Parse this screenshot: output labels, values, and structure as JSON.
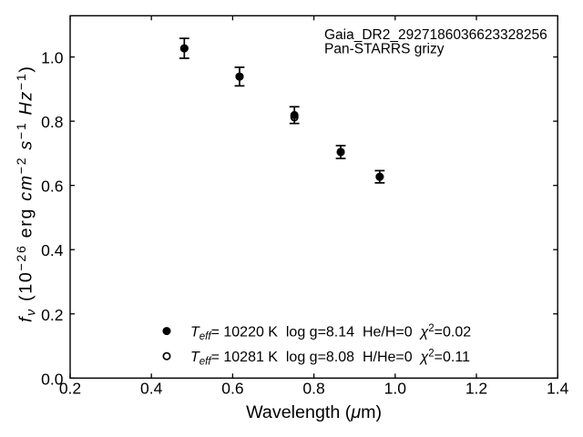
{
  "figure": {
    "kind": "matplotlib-style scatter plot with error bars",
    "background_color": "#ffffff",
    "ink_color": "#000000"
  },
  "chart_data": {
    "type": "scatter",
    "title": "",
    "annotation_lines": [
      "Gaia_DR2_2927186036623328256",
      "Pan-STARRS grizy"
    ],
    "xlabel_parts": [
      {
        "t": "Wavelength (",
        "style": "up",
        "pos": "base"
      },
      {
        "t": "μ",
        "style": "it",
        "pos": "base"
      },
      {
        "t": "m)",
        "style": "up",
        "pos": "base"
      }
    ],
    "xlabel_text": "Wavelength (μm)",
    "ylabel_parts": [
      {
        "t": "f",
        "style": "it",
        "pos": "base"
      },
      {
        "t": "ν",
        "style": "it",
        "pos": "sub"
      },
      {
        "t": " (10",
        "style": "up",
        "pos": "base"
      },
      {
        "t": "−26",
        "style": "up",
        "pos": "sup"
      },
      {
        "t": " erg ",
        "style": "up",
        "pos": "base"
      },
      {
        "t": "cm",
        "style": "it",
        "pos": "base"
      },
      {
        "t": "−2",
        "style": "up",
        "pos": "sup"
      },
      {
        "t": " ",
        "style": "up",
        "pos": "base"
      },
      {
        "t": "s",
        "style": "it",
        "pos": "base"
      },
      {
        "t": "−1",
        "style": "up",
        "pos": "sup"
      },
      {
        "t": " ",
        "style": "up",
        "pos": "base"
      },
      {
        "t": "Hz",
        "style": "it",
        "pos": "base"
      },
      {
        "t": "−1",
        "style": "up",
        "pos": "sup"
      },
      {
        "t": ")",
        "style": "up",
        "pos": "base"
      }
    ],
    "ylabel_text": "fν (10−26 erg cm−2 s−1 Hz−1)",
    "xlim": [
      0.2,
      1.4
    ],
    "ylim": [
      0.0,
      1.1284
    ],
    "xticks": [
      0.2,
      0.4,
      0.6,
      0.8,
      1.0,
      1.2,
      1.4
    ],
    "xtick_labels": [
      "0.2",
      "0.4",
      "0.6",
      "0.8",
      "1.0",
      "1.2",
      "1.4"
    ],
    "yticks": [
      0.0,
      0.2,
      0.4,
      0.6,
      0.8,
      1.0
    ],
    "ytick_labels": [
      "0.0",
      "0.2",
      "0.4",
      "0.6",
      "0.8",
      "1.0"
    ],
    "grid": false,
    "tick_direction": "in",
    "ticks_all_sides": true,
    "series": [
      {
        "name": "open-circle-model",
        "marker": "open-circle",
        "x": [
          0.481,
          0.617,
          0.752,
          0.866,
          0.962
        ],
        "y": [
          1.027,
          0.939,
          0.812,
          0.704,
          0.627
        ]
      },
      {
        "name": "filled-circle-model",
        "marker": "filled-circle",
        "x": [
          0.481,
          0.617,
          0.752,
          0.866,
          0.962
        ],
        "y": [
          1.027,
          0.939,
          0.819,
          0.704,
          0.627
        ],
        "yerr": [
          0.031,
          0.029,
          0.026,
          0.02,
          0.019
        ]
      }
    ],
    "legend": {
      "position": "lower center inside axes",
      "frame": false,
      "entries": [
        {
          "marker": "filled-circle",
          "label_text": "T_eff= 10220 K  log g=8.14  He/H=0  χ²=0.02",
          "label_parts": [
            {
              "t": "T",
              "style": "it",
              "pos": "base"
            },
            {
              "t": "eff",
              "style": "it",
              "pos": "sub"
            },
            {
              "t": "= 10220 K  log g=8.14  He/H=0  ",
              "style": "up",
              "pos": "base"
            },
            {
              "t": "χ",
              "style": "it",
              "pos": "base"
            },
            {
              "t": "2",
              "style": "up",
              "pos": "sup"
            },
            {
              "t": "=0.02",
              "style": "up",
              "pos": "base"
            }
          ]
        },
        {
          "marker": "open-circle",
          "label_text": "T_eff= 10281 K  log g=8.08  H/He=0  χ²=0.11",
          "label_parts": [
            {
              "t": "T",
              "style": "it",
              "pos": "base"
            },
            {
              "t": "eff",
              "style": "it",
              "pos": "sub"
            },
            {
              "t": "= 10281 K  log g=8.08  H/He=0  ",
              "style": "up",
              "pos": "base"
            },
            {
              "t": "χ",
              "style": "it",
              "pos": "base"
            },
            {
              "t": "2",
              "style": "up",
              "pos": "sup"
            },
            {
              "t": "=0.11",
              "style": "up",
              "pos": "base"
            }
          ]
        }
      ]
    }
  }
}
